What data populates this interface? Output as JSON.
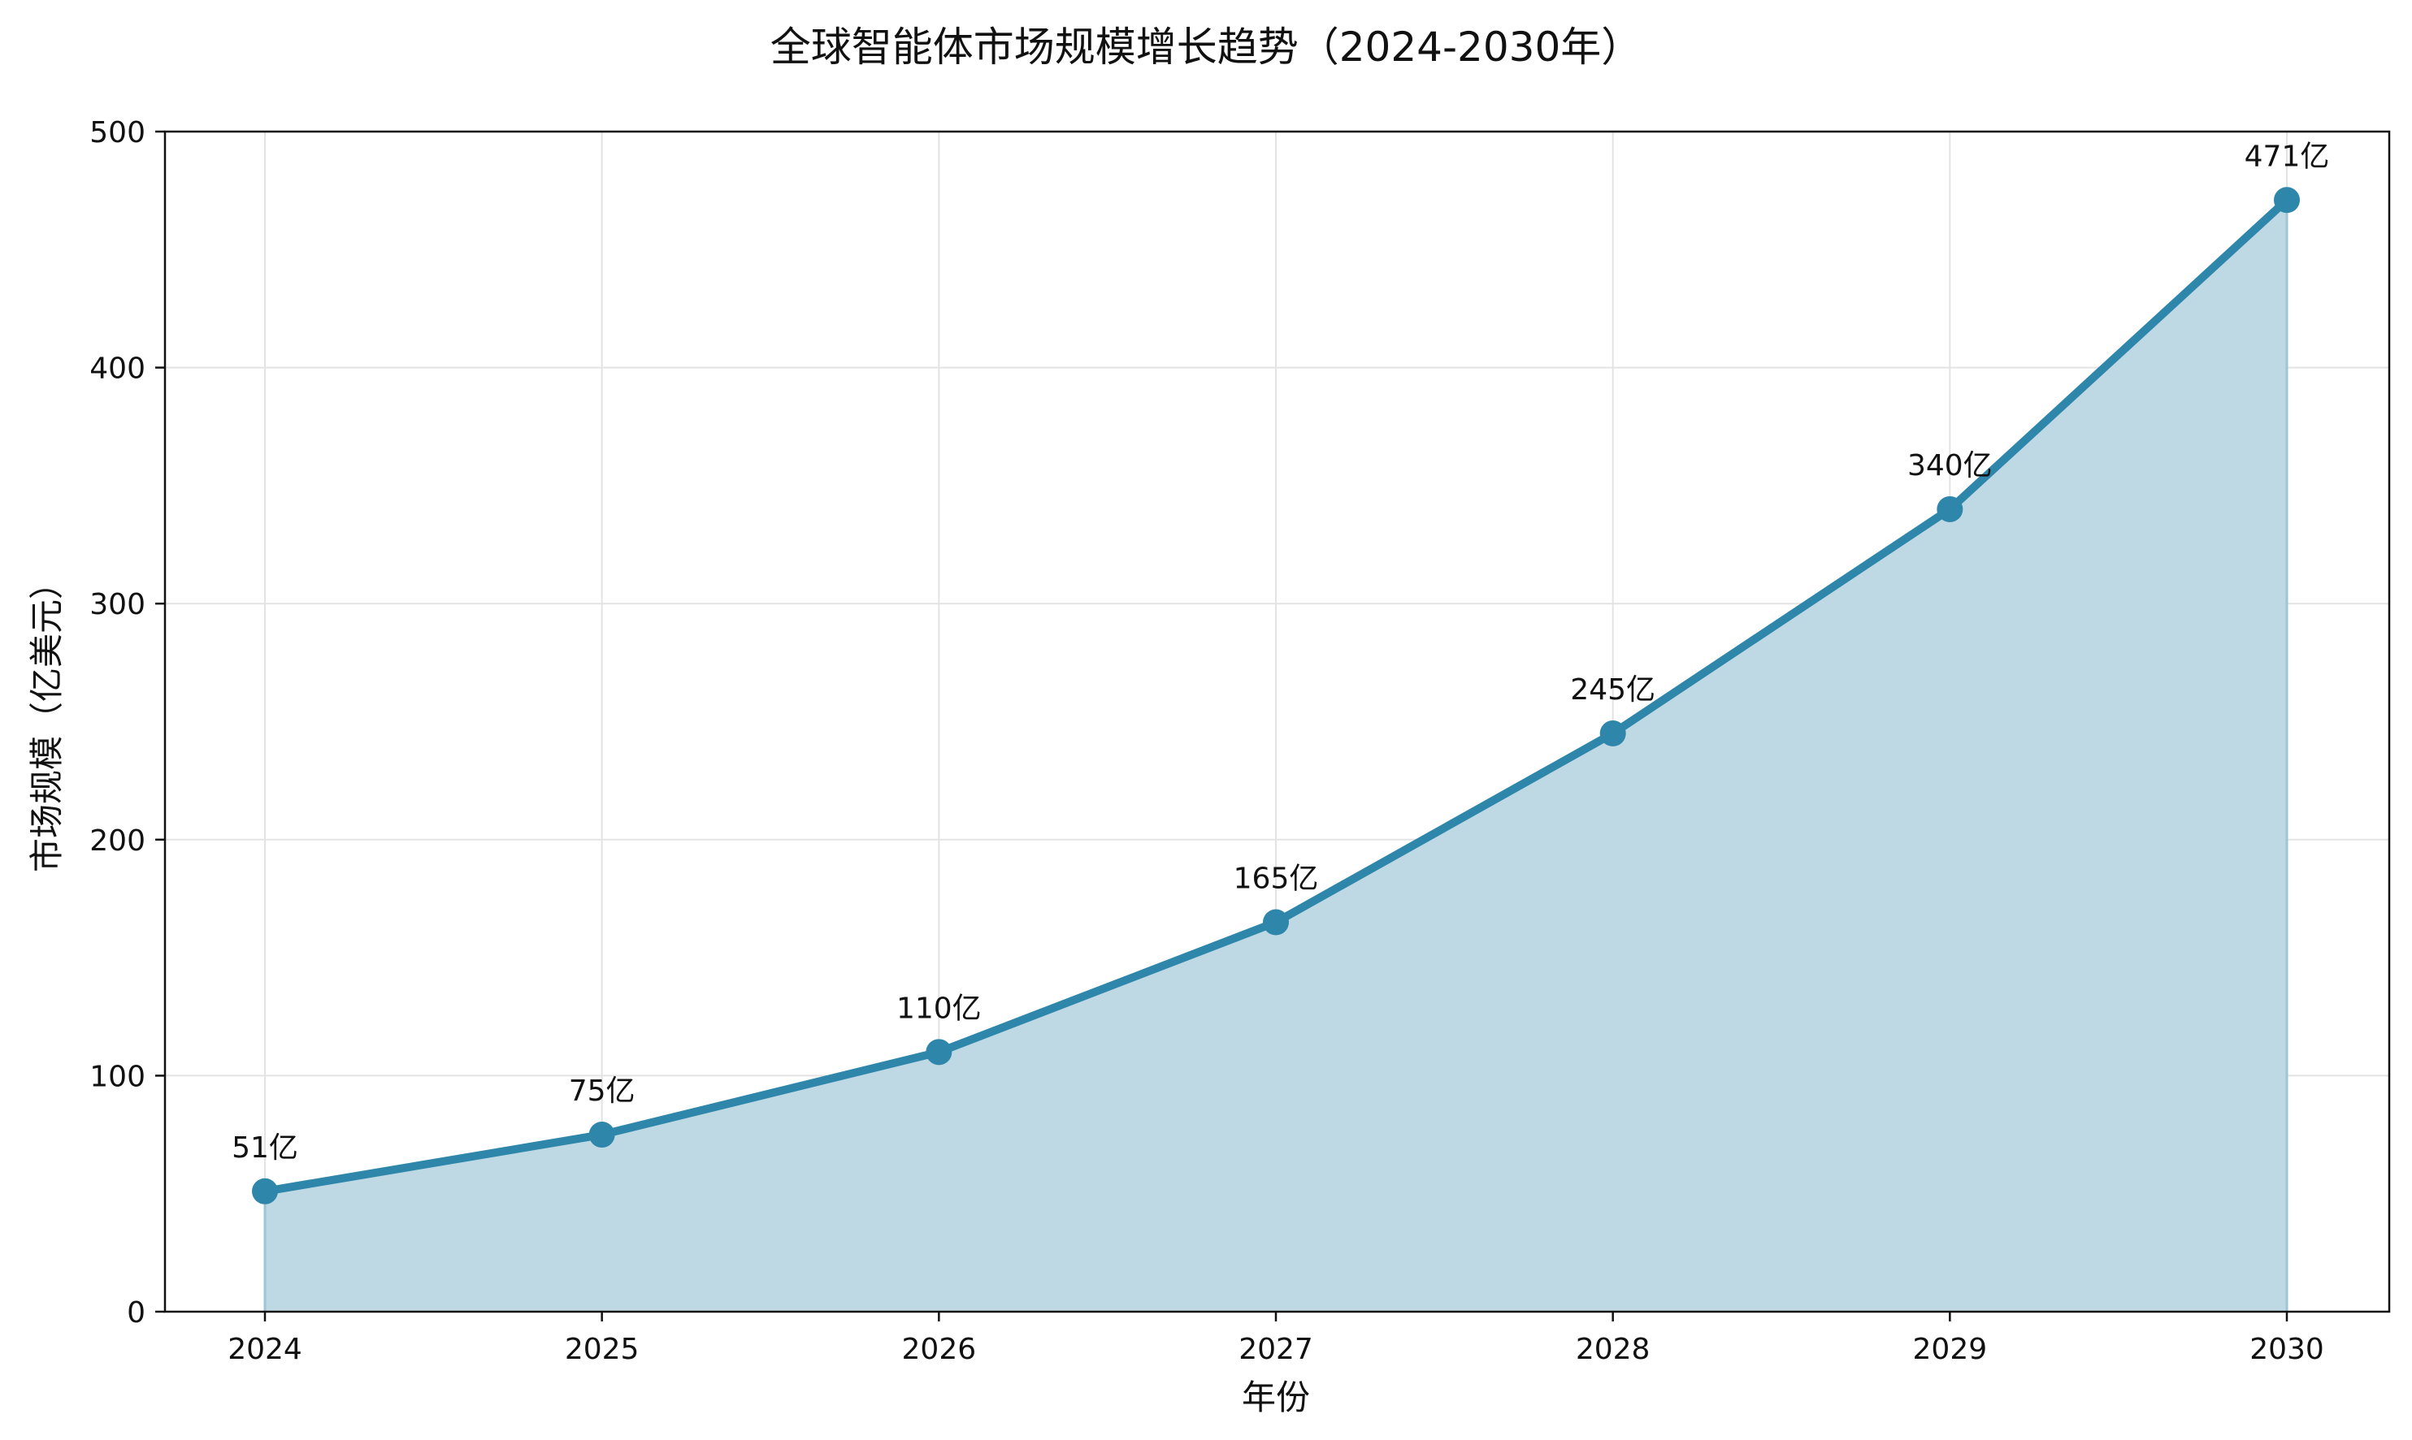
{
  "chart_data": {
    "type": "area",
    "title": "全球智能体市场规模增长趋势（2024-2030年）",
    "xlabel": "年份",
    "ylabel": "市场规模（亿美元）",
    "categories": [
      "2024",
      "2025",
      "2026",
      "2027",
      "2028",
      "2029",
      "2030"
    ],
    "values": [
      51,
      75,
      110,
      165,
      245,
      340,
      471
    ],
    "data_labels": [
      "51亿",
      "75亿",
      "110亿",
      "165亿",
      "245亿",
      "340亿",
      "471亿"
    ],
    "ylim": [
      0,
      500
    ],
    "yticks": [
      0,
      100,
      200,
      300,
      400,
      500
    ],
    "grid": true,
    "legend": "none",
    "colors": {
      "line": "#2e86ab",
      "fill": "#bfd9e4",
      "grid": "#e3e3e3",
      "axis": "#111111"
    }
  }
}
